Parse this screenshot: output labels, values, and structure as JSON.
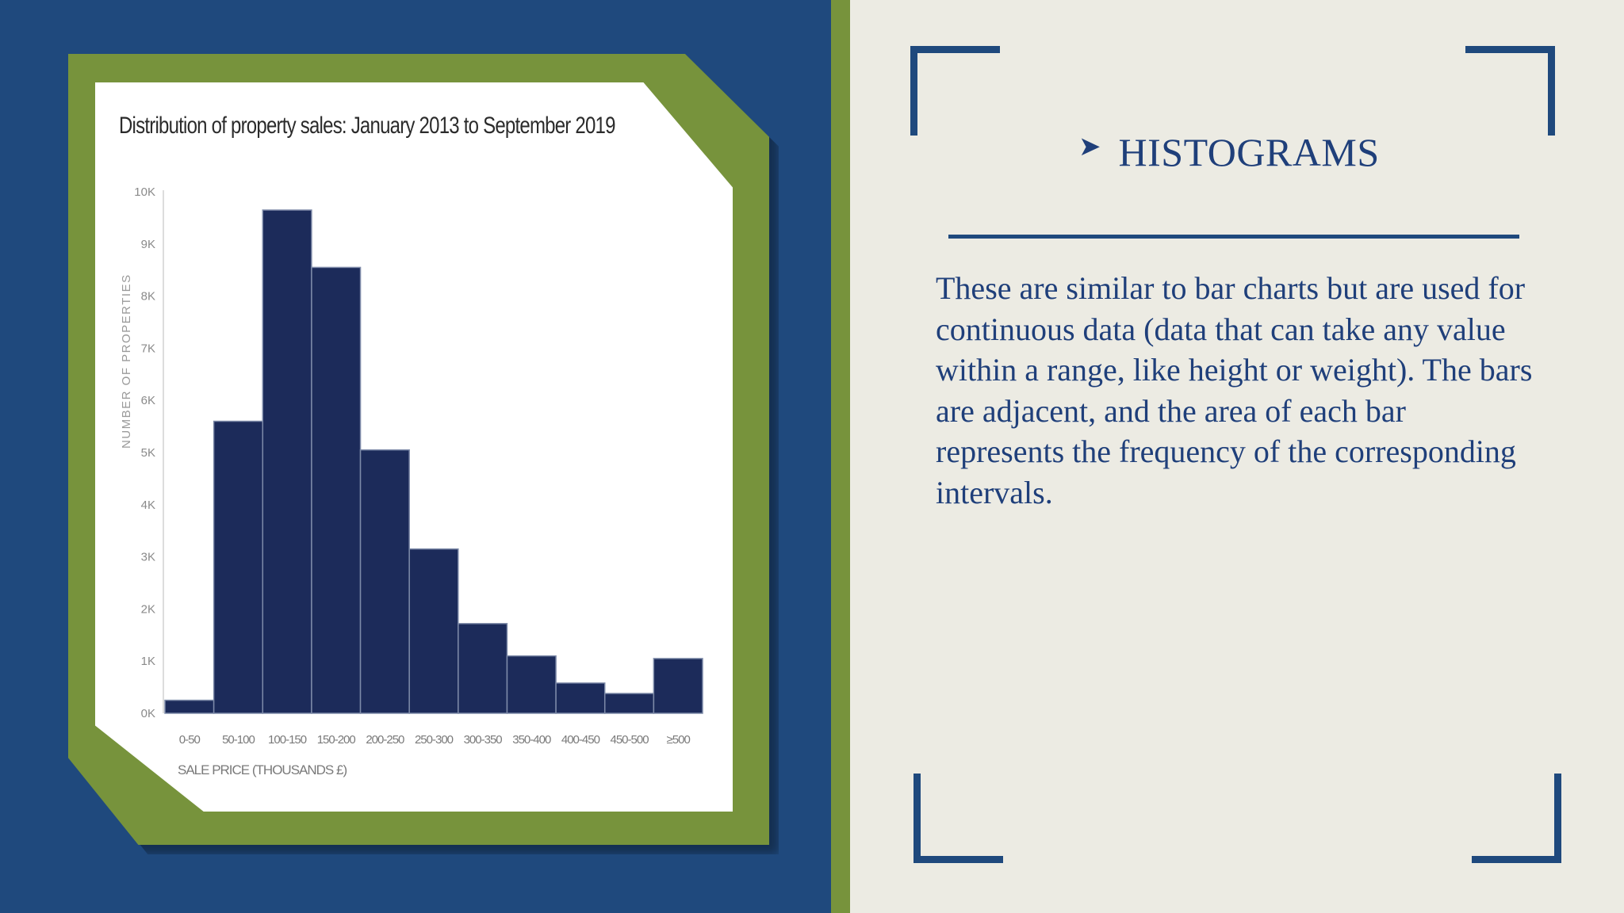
{
  "slide": {
    "heading": "HISTOGRAMS",
    "bullet_icon": "arrowhead-bullet-icon",
    "body": "These are similar to bar charts but are used for continuous data (data that can take any value within a range, like height or weight). The bars are adjacent, and the area of each bar represents the frequency of the corresponding intervals."
  },
  "colors": {
    "navy": "#1f497d",
    "green": "#77933c",
    "cream": "#ecebe3",
    "bar": "#1c2b5a",
    "text": "#1f3f7a"
  },
  "chart_data": {
    "type": "bar",
    "title": "Distribution of property sales: January 2013 to September 2019",
    "xlabel": "SALE PRICE (THOUSANDS £)",
    "ylabel": "NUMBER OF PROPERTIES",
    "categories": [
      "0-50",
      "50-100",
      "100-150",
      "150-200",
      "200-250",
      "250-300",
      "300-350",
      "350-400",
      "400-450",
      "450-500",
      "≥500"
    ],
    "values": [
      250,
      5600,
      9650,
      8550,
      5050,
      3150,
      1720,
      1100,
      580,
      380,
      1050
    ],
    "ylim": [
      0,
      10000
    ],
    "yticks": [
      0,
      1000,
      2000,
      3000,
      4000,
      5000,
      6000,
      7000,
      8000,
      9000,
      10000
    ],
    "ytick_labels": [
      "0K",
      "1K",
      "2K",
      "3K",
      "4K",
      "5K",
      "6K",
      "7K",
      "8K",
      "9K",
      "10K"
    ],
    "grid": false,
    "legend": "none"
  }
}
